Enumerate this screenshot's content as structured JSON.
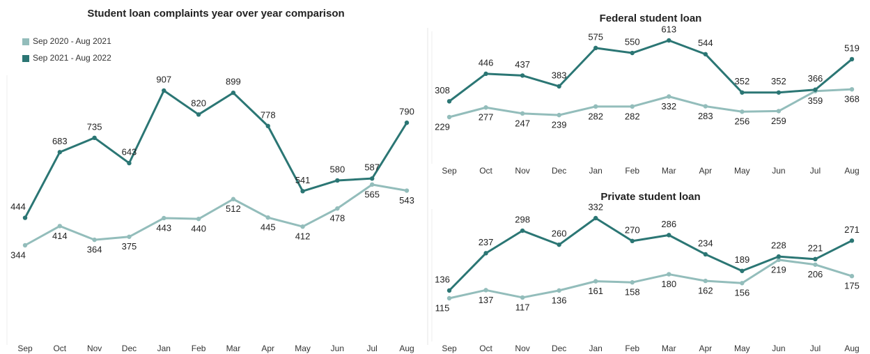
{
  "chart_data": [
    {
      "type": "line",
      "title": "Student loan complaints year over year comparison",
      "categories": [
        "Sep",
        "Oct",
        "Nov",
        "Dec",
        "Jan",
        "Feb",
        "Mar",
        "Apr",
        "May",
        "Jun",
        "Jul",
        "Aug"
      ],
      "series": [
        {
          "name": "Sep 2020 - Aug 2021",
          "color": "#93bdbb",
          "values": [
            344,
            414,
            364,
            375,
            443,
            440,
            512,
            445,
            412,
            478,
            565,
            543
          ]
        },
        {
          "name": "Sep 2021 - Aug 2022",
          "color": "#2b7674",
          "values": [
            444,
            683,
            735,
            643,
            907,
            820,
            899,
            778,
            541,
            580,
            587,
            790
          ]
        }
      ]
    },
    {
      "type": "line",
      "title": "Federal student loan",
      "categories": [
        "Sep",
        "Oct",
        "Nov",
        "Dec",
        "Jan",
        "Feb",
        "Mar",
        "Apr",
        "May",
        "Jun",
        "Jul",
        "Aug"
      ],
      "series": [
        {
          "color": "#93bdbb",
          "values": [
            229,
            277,
            247,
            239,
            282,
            282,
            332,
            283,
            256,
            259,
            359,
            368
          ]
        },
        {
          "color": "#2b7674",
          "values": [
            308,
            446,
            437,
            383,
            575,
            550,
            613,
            544,
            352,
            352,
            366,
            519
          ]
        }
      ]
    },
    {
      "type": "line",
      "title": "Private student loan",
      "categories": [
        "Sep",
        "Oct",
        "Nov",
        "Dec",
        "Jan",
        "Feb",
        "Mar",
        "Apr",
        "May",
        "Jun",
        "Jul",
        "Aug"
      ],
      "series": [
        {
          "color": "#93bdbb",
          "values": [
            115,
            137,
            117,
            136,
            161,
            158,
            180,
            162,
            156,
            219,
            206,
            175
          ]
        },
        {
          "color": "#2b7674",
          "values": [
            136,
            237,
            298,
            260,
            332,
            270,
            286,
            234,
            189,
            228,
            221,
            271
          ]
        }
      ]
    }
  ]
}
